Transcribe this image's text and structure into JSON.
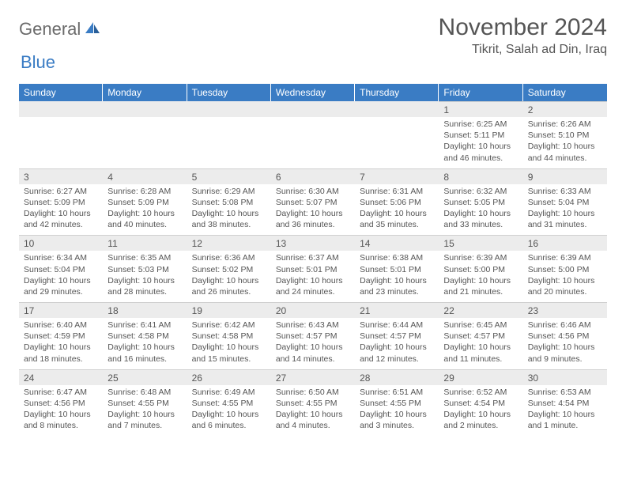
{
  "logo": {
    "part1": "General",
    "part2": "Blue"
  },
  "title": "November 2024",
  "location": "Tikrit, Salah ad Din, Iraq",
  "colors": {
    "header_bg": "#3a7cc4",
    "header_text": "#ffffff",
    "num_bg": "#ececec",
    "text": "#555555",
    "logo_gray": "#6b6b6b",
    "logo_blue": "#3a7cc4"
  },
  "weekdays": [
    "Sunday",
    "Monday",
    "Tuesday",
    "Wednesday",
    "Thursday",
    "Friday",
    "Saturday"
  ],
  "weeks": [
    [
      null,
      null,
      null,
      null,
      null,
      {
        "n": "1",
        "sr": "6:25 AM",
        "ss": "5:11 PM",
        "dl": "10 hours and 46 minutes."
      },
      {
        "n": "2",
        "sr": "6:26 AM",
        "ss": "5:10 PM",
        "dl": "10 hours and 44 minutes."
      }
    ],
    [
      {
        "n": "3",
        "sr": "6:27 AM",
        "ss": "5:09 PM",
        "dl": "10 hours and 42 minutes."
      },
      {
        "n": "4",
        "sr": "6:28 AM",
        "ss": "5:09 PM",
        "dl": "10 hours and 40 minutes."
      },
      {
        "n": "5",
        "sr": "6:29 AM",
        "ss": "5:08 PM",
        "dl": "10 hours and 38 minutes."
      },
      {
        "n": "6",
        "sr": "6:30 AM",
        "ss": "5:07 PM",
        "dl": "10 hours and 36 minutes."
      },
      {
        "n": "7",
        "sr": "6:31 AM",
        "ss": "5:06 PM",
        "dl": "10 hours and 35 minutes."
      },
      {
        "n": "8",
        "sr": "6:32 AM",
        "ss": "5:05 PM",
        "dl": "10 hours and 33 minutes."
      },
      {
        "n": "9",
        "sr": "6:33 AM",
        "ss": "5:04 PM",
        "dl": "10 hours and 31 minutes."
      }
    ],
    [
      {
        "n": "10",
        "sr": "6:34 AM",
        "ss": "5:04 PM",
        "dl": "10 hours and 29 minutes."
      },
      {
        "n": "11",
        "sr": "6:35 AM",
        "ss": "5:03 PM",
        "dl": "10 hours and 28 minutes."
      },
      {
        "n": "12",
        "sr": "6:36 AM",
        "ss": "5:02 PM",
        "dl": "10 hours and 26 minutes."
      },
      {
        "n": "13",
        "sr": "6:37 AM",
        "ss": "5:01 PM",
        "dl": "10 hours and 24 minutes."
      },
      {
        "n": "14",
        "sr": "6:38 AM",
        "ss": "5:01 PM",
        "dl": "10 hours and 23 minutes."
      },
      {
        "n": "15",
        "sr": "6:39 AM",
        "ss": "5:00 PM",
        "dl": "10 hours and 21 minutes."
      },
      {
        "n": "16",
        "sr": "6:39 AM",
        "ss": "5:00 PM",
        "dl": "10 hours and 20 minutes."
      }
    ],
    [
      {
        "n": "17",
        "sr": "6:40 AM",
        "ss": "4:59 PM",
        "dl": "10 hours and 18 minutes."
      },
      {
        "n": "18",
        "sr": "6:41 AM",
        "ss": "4:58 PM",
        "dl": "10 hours and 16 minutes."
      },
      {
        "n": "19",
        "sr": "6:42 AM",
        "ss": "4:58 PM",
        "dl": "10 hours and 15 minutes."
      },
      {
        "n": "20",
        "sr": "6:43 AM",
        "ss": "4:57 PM",
        "dl": "10 hours and 14 minutes."
      },
      {
        "n": "21",
        "sr": "6:44 AM",
        "ss": "4:57 PM",
        "dl": "10 hours and 12 minutes."
      },
      {
        "n": "22",
        "sr": "6:45 AM",
        "ss": "4:57 PM",
        "dl": "10 hours and 11 minutes."
      },
      {
        "n": "23",
        "sr": "6:46 AM",
        "ss": "4:56 PM",
        "dl": "10 hours and 9 minutes."
      }
    ],
    [
      {
        "n": "24",
        "sr": "6:47 AM",
        "ss": "4:56 PM",
        "dl": "10 hours and 8 minutes."
      },
      {
        "n": "25",
        "sr": "6:48 AM",
        "ss": "4:55 PM",
        "dl": "10 hours and 7 minutes."
      },
      {
        "n": "26",
        "sr": "6:49 AM",
        "ss": "4:55 PM",
        "dl": "10 hours and 6 minutes."
      },
      {
        "n": "27",
        "sr": "6:50 AM",
        "ss": "4:55 PM",
        "dl": "10 hours and 4 minutes."
      },
      {
        "n": "28",
        "sr": "6:51 AM",
        "ss": "4:55 PM",
        "dl": "10 hours and 3 minutes."
      },
      {
        "n": "29",
        "sr": "6:52 AM",
        "ss": "4:54 PM",
        "dl": "10 hours and 2 minutes."
      },
      {
        "n": "30",
        "sr": "6:53 AM",
        "ss": "4:54 PM",
        "dl": "10 hours and 1 minute."
      }
    ]
  ]
}
